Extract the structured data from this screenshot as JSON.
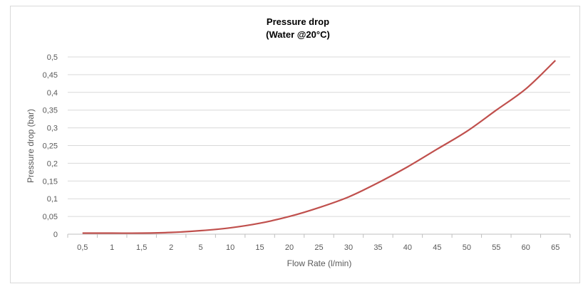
{
  "chart_data": {
    "type": "line",
    "title": "Pressure drop",
    "subtitle": "(Water @20°C)",
    "xlabel": "Flow Rate (l/min)",
    "ylabel": "Pressure drop (bar)",
    "categories": [
      "0,5",
      "1",
      "1,5",
      "2",
      "5",
      "10",
      "15",
      "20",
      "25",
      "30",
      "35",
      "40",
      "45",
      "50",
      "55",
      "60",
      "65"
    ],
    "series": [
      {
        "name": "Pressure drop",
        "color": "#c0504d",
        "values": [
          0.003,
          0.003,
          0.003,
          0.005,
          0.01,
          0.018,
          0.031,
          0.05,
          0.075,
          0.105,
          0.145,
          0.19,
          0.24,
          0.29,
          0.35,
          0.41,
          0.49
        ]
      }
    ],
    "ylim": [
      0,
      0.5
    ],
    "yticks": [
      "0",
      "0,05",
      "0,1",
      "0,15",
      "0,2",
      "0,25",
      "0,3",
      "0,35",
      "0,4",
      "0,45",
      "0,5"
    ],
    "grid": true,
    "legend": "none"
  }
}
